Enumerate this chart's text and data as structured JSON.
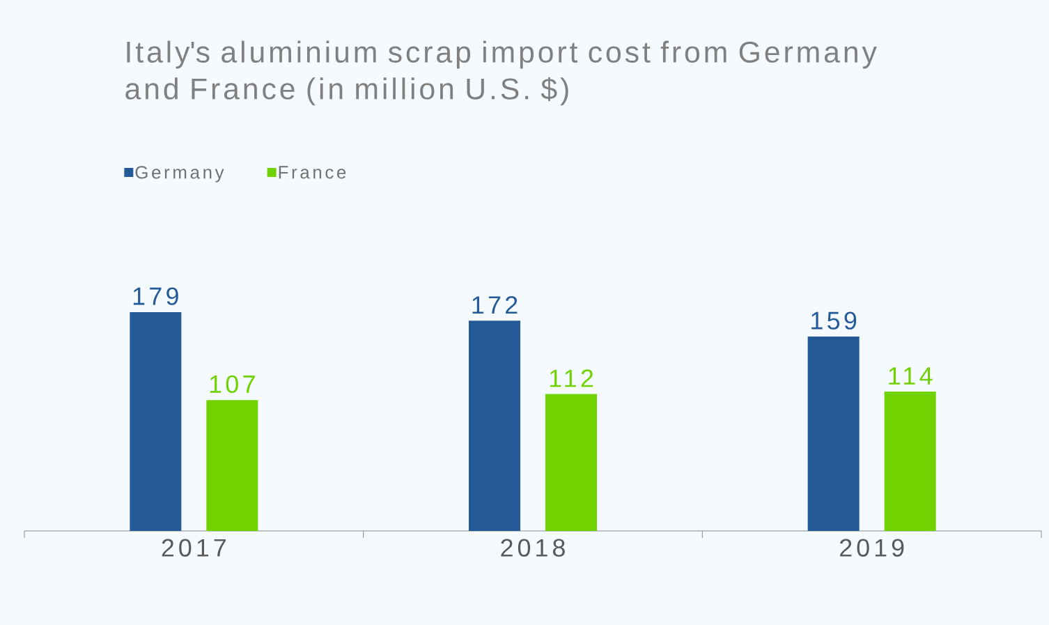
{
  "chart_data": {
    "type": "bar",
    "title": "Italy's aluminium scrap import cost from Germany and France (in million U.S. $)",
    "categories": [
      "2017",
      "2018",
      "2019"
    ],
    "series": [
      {
        "name": "Germany",
        "color": "#255a99",
        "values": [
          179,
          172,
          159
        ]
      },
      {
        "name": "France",
        "color": "#70d200",
        "values": [
          107,
          112,
          114
        ]
      }
    ],
    "data_labels": true,
    "legend": "top left"
  }
}
